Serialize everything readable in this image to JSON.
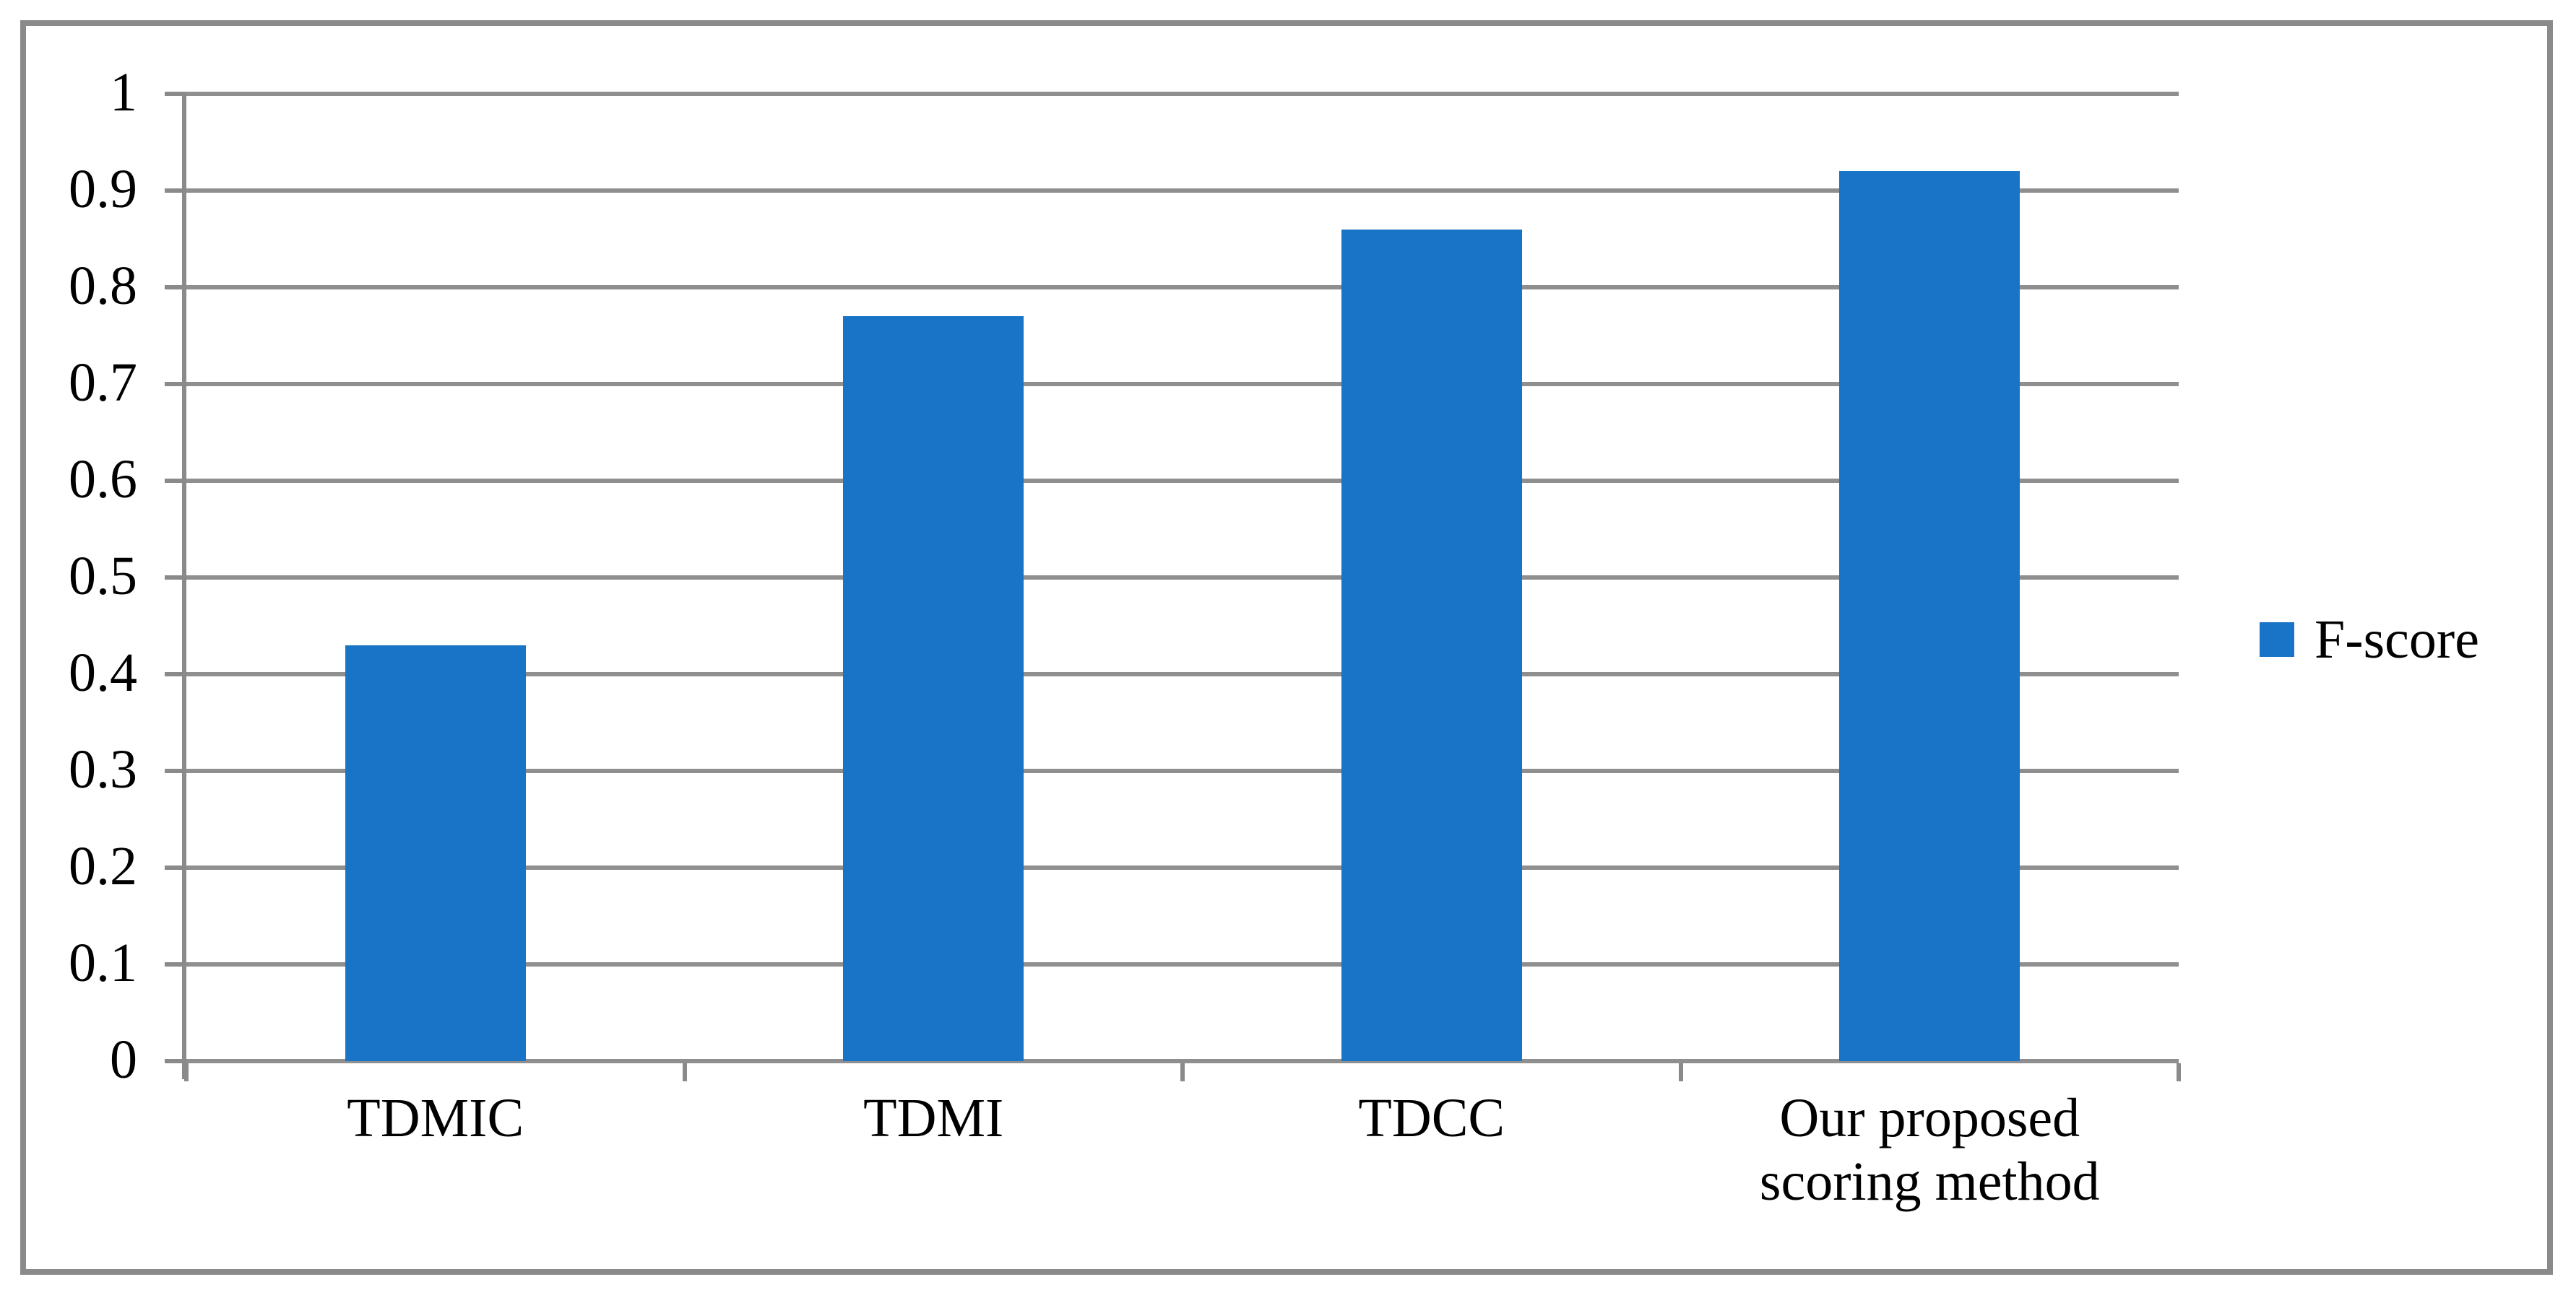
{
  "chart_data": {
    "type": "bar",
    "title": "",
    "categories": [
      "TDMIC",
      "TDMI",
      "TDCC",
      "Our proposed scoring method"
    ],
    "series": [
      {
        "name": "F-score",
        "values": [
          0.43,
          0.77,
          0.86,
          0.92
        ]
      }
    ],
    "xlabel": "",
    "ylabel": "",
    "ylim": [
      0,
      1
    ],
    "yticks": [
      "0",
      "0.1",
      "0.2",
      "0.3",
      "0.4",
      "0.5",
      "0.6",
      "0.7",
      "0.8",
      "0.9",
      "1"
    ],
    "grid": "horizontal",
    "legend_position": "right",
    "colors": {
      "bar": "#1973C6",
      "axis": "#8A8A8A",
      "gridline": "#8F8F8F",
      "border": "#8A8A8A",
      "text": "#000000",
      "background": "#FFFFFF"
    }
  },
  "legend": {
    "items": [
      {
        "label": "F-score",
        "color": "#1973C6"
      }
    ]
  }
}
